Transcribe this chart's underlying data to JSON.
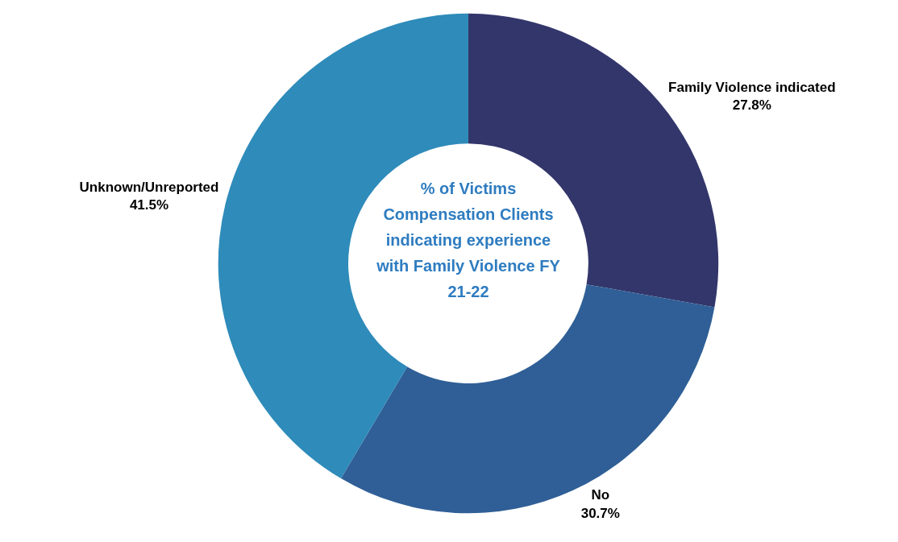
{
  "chart_data": {
    "type": "donut",
    "title": "% of Victims Compensation Clients indicating experience with Family Violence FY 21-22",
    "categories": [
      "Family Violence indicated",
      "No",
      "Unknown/Unreported"
    ],
    "values": [
      27.8,
      30.7,
      41.5
    ],
    "value_labels": [
      "27.8%",
      "30.7%",
      "41.5%"
    ],
    "colors": [
      "#33366b",
      "#2f5f96",
      "#2e8bba"
    ],
    "legend": false
  }
}
